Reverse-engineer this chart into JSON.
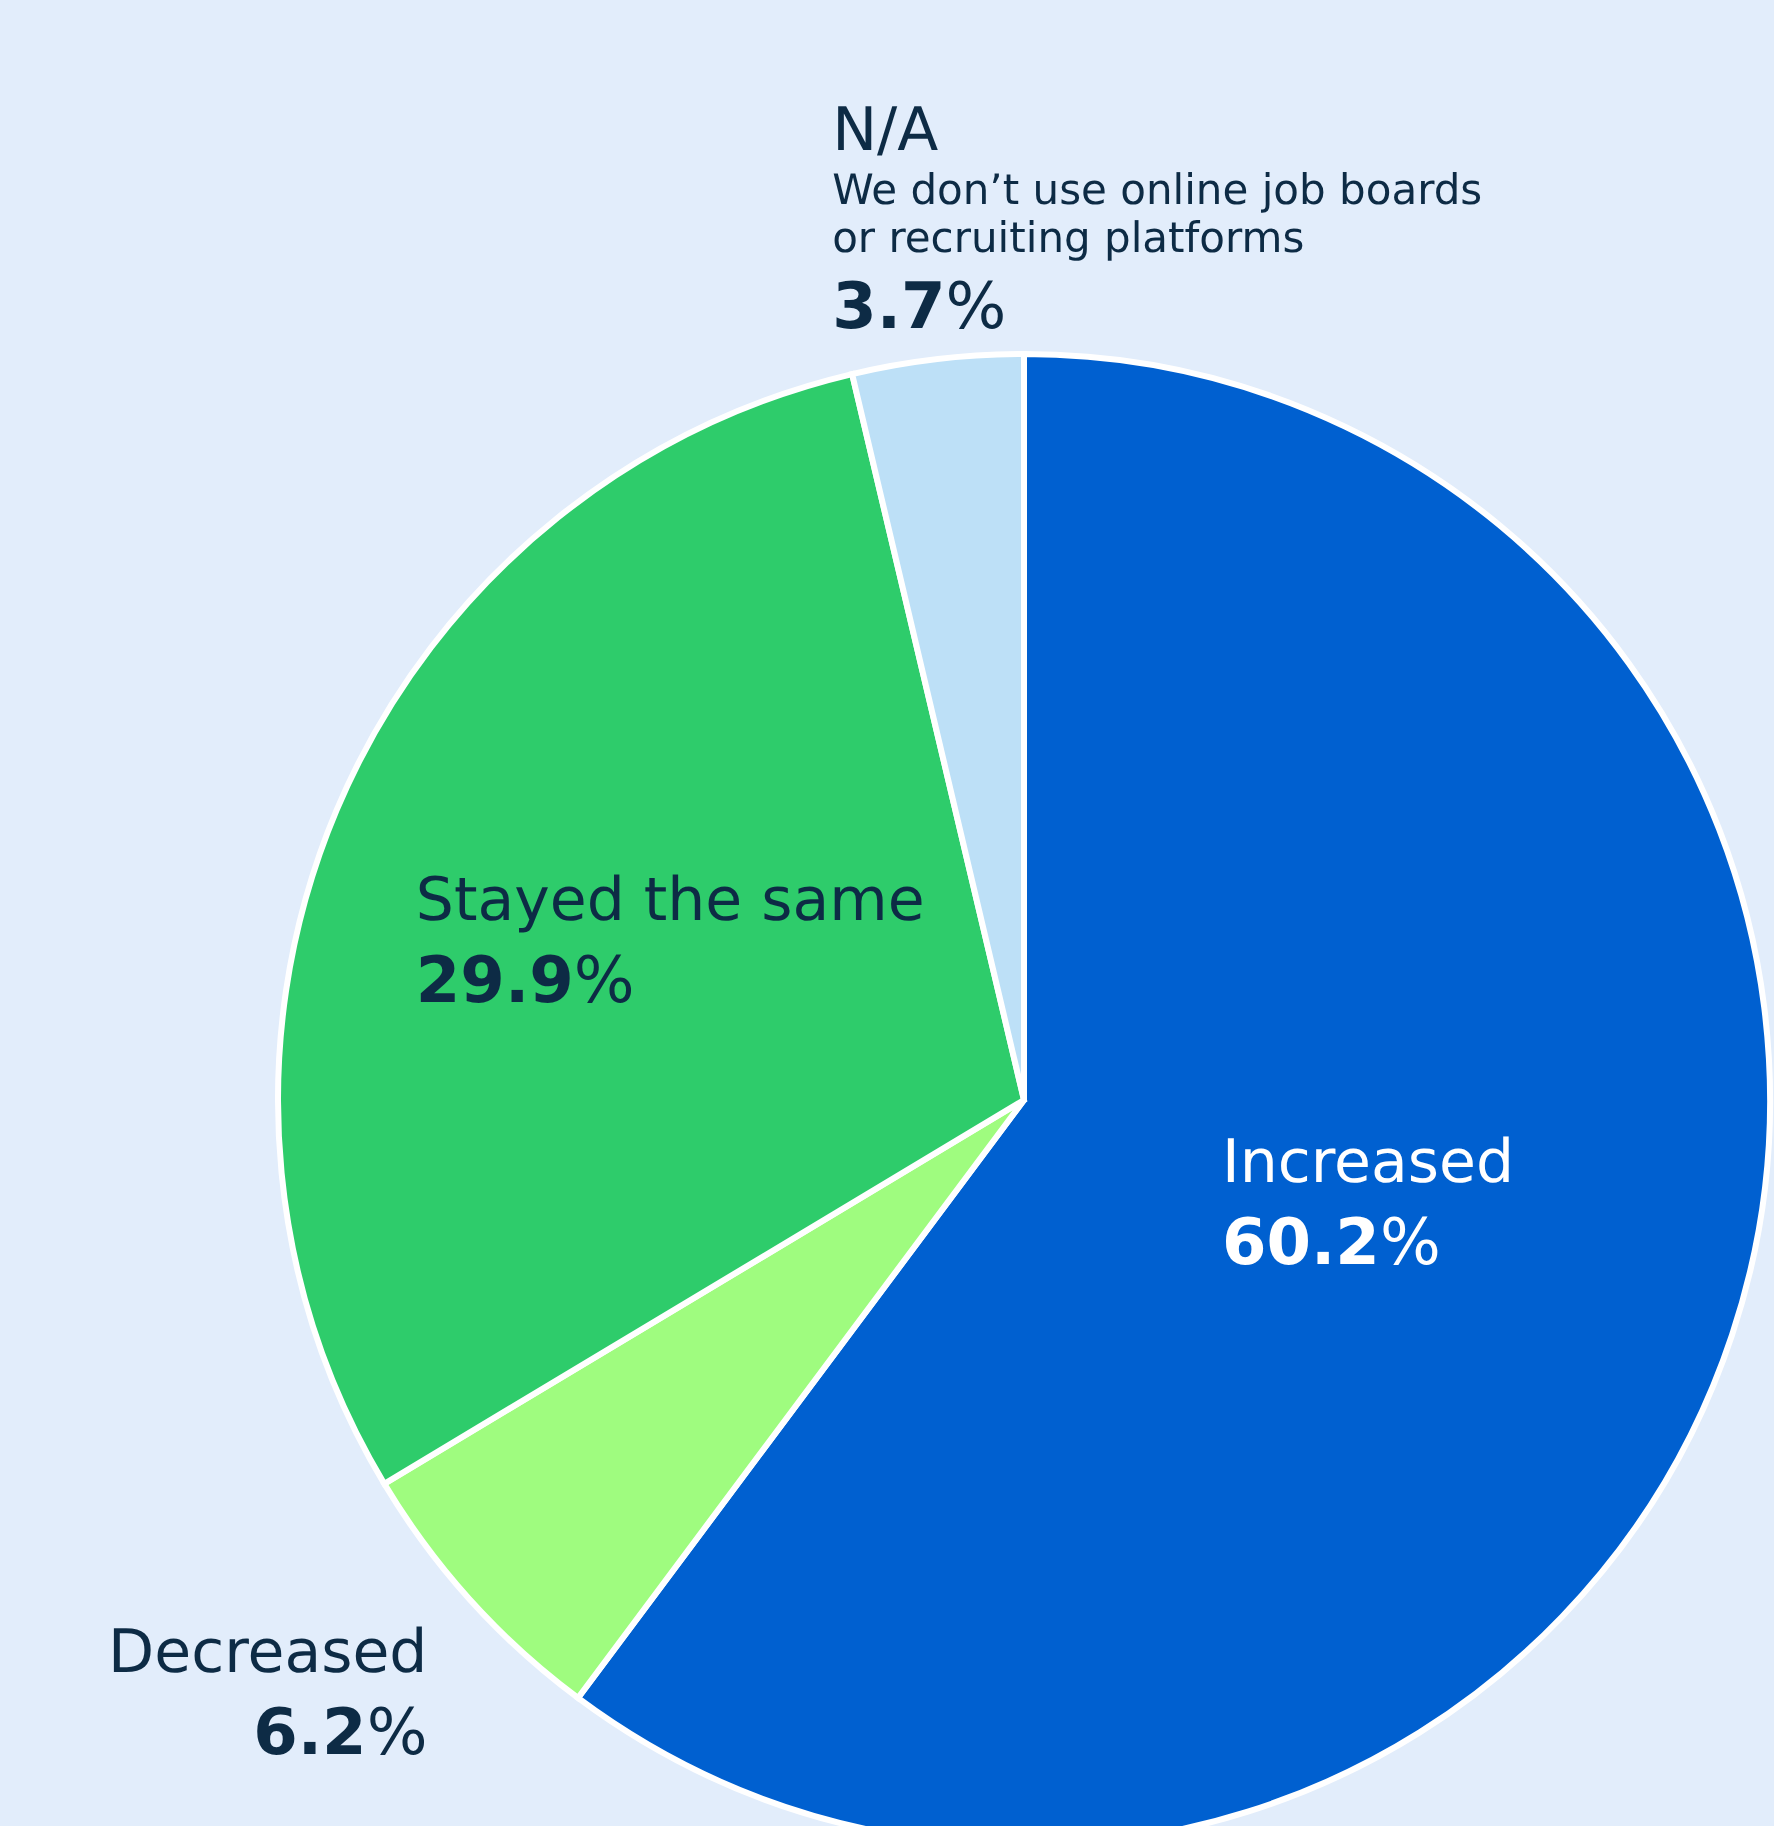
{
  "chart_data": {
    "type": "pie",
    "categories": [
      "Increased",
      "Decreased",
      "Stayed the same",
      "N/A"
    ],
    "values": [
      60.2,
      6.2,
      29.9,
      3.7
    ],
    "colors": [
      "#0060d0",
      "#9ffc7f",
      "#2ecc6b",
      "#bde0f7"
    ],
    "value_labels": [
      "60.2%",
      "6.2%",
      "29.9%",
      "3.7%"
    ],
    "annotations": [
      {
        "text": "We don’t use online job boards or recruiting platforms",
        "x": "N/A"
      }
    ],
    "legend": false
  }
}
